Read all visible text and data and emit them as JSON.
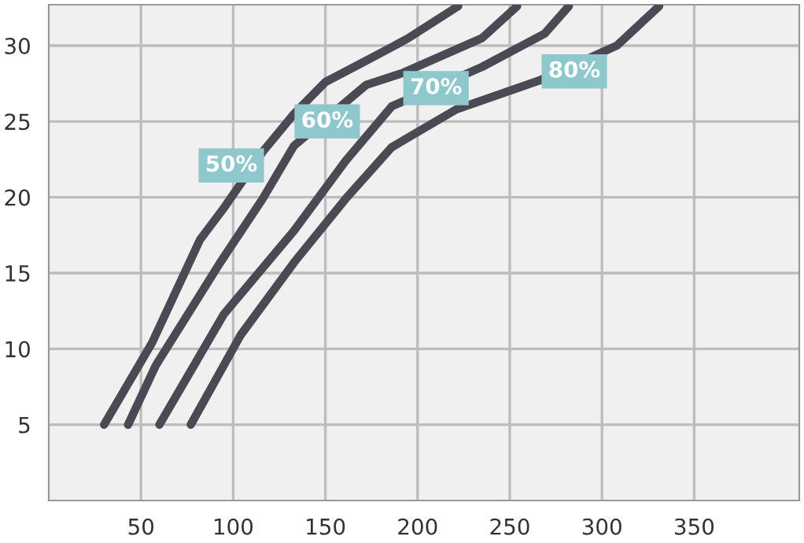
{
  "chart_data": {
    "type": "line",
    "xlim": [
      0,
      407
    ],
    "ylim": [
      0,
      32.7
    ],
    "xticks": [
      50,
      100,
      150,
      200,
      250,
      300,
      350
    ],
    "yticks": [
      5,
      10,
      15,
      20,
      25,
      30
    ],
    "grid": true,
    "line_style": "solid",
    "marker": "none",
    "series": [
      {
        "color": "#4a4a55",
        "x": [
          30,
          56,
          82,
          95,
          116,
          133,
          150,
          172,
          186,
          195,
          222
        ],
        "values": [
          5,
          10.4,
          17.2,
          19.3,
          23,
          25.5,
          27.6,
          29,
          29.9,
          30.5,
          32.6
        ]
      },
      {
        "color": "#4a4a55",
        "x": [
          43,
          58,
          93,
          116,
          133,
          172,
          192,
          235,
          254
        ],
        "values": [
          5,
          8.9,
          15.7,
          19.9,
          23.4,
          27.4,
          28.2,
          30.5,
          32.6
        ]
      },
      {
        "color": "#4a4a55",
        "x": [
          60,
          95,
          133,
          161,
          186,
          235,
          269,
          282
        ],
        "values": [
          5,
          12.3,
          17.8,
          22.4,
          26,
          28.6,
          30.8,
          32.6
        ]
      },
      {
        "color": "#4a4a55",
        "x": [
          77,
          104,
          133,
          161,
          186,
          221,
          266,
          308,
          331
        ],
        "values": [
          5,
          10.9,
          15.7,
          19.9,
          23.3,
          25.8,
          27.7,
          30,
          32.6
        ]
      }
    ],
    "annotations": [
      {
        "text": "50%",
        "x": 99,
        "y": 22.1
      },
      {
        "text": "60%",
        "x": 151,
        "y": 25
      },
      {
        "text": "70%",
        "x": 210,
        "y": 27.2
      },
      {
        "text": "80%",
        "x": 285,
        "y": 28.3
      }
    ]
  }
}
